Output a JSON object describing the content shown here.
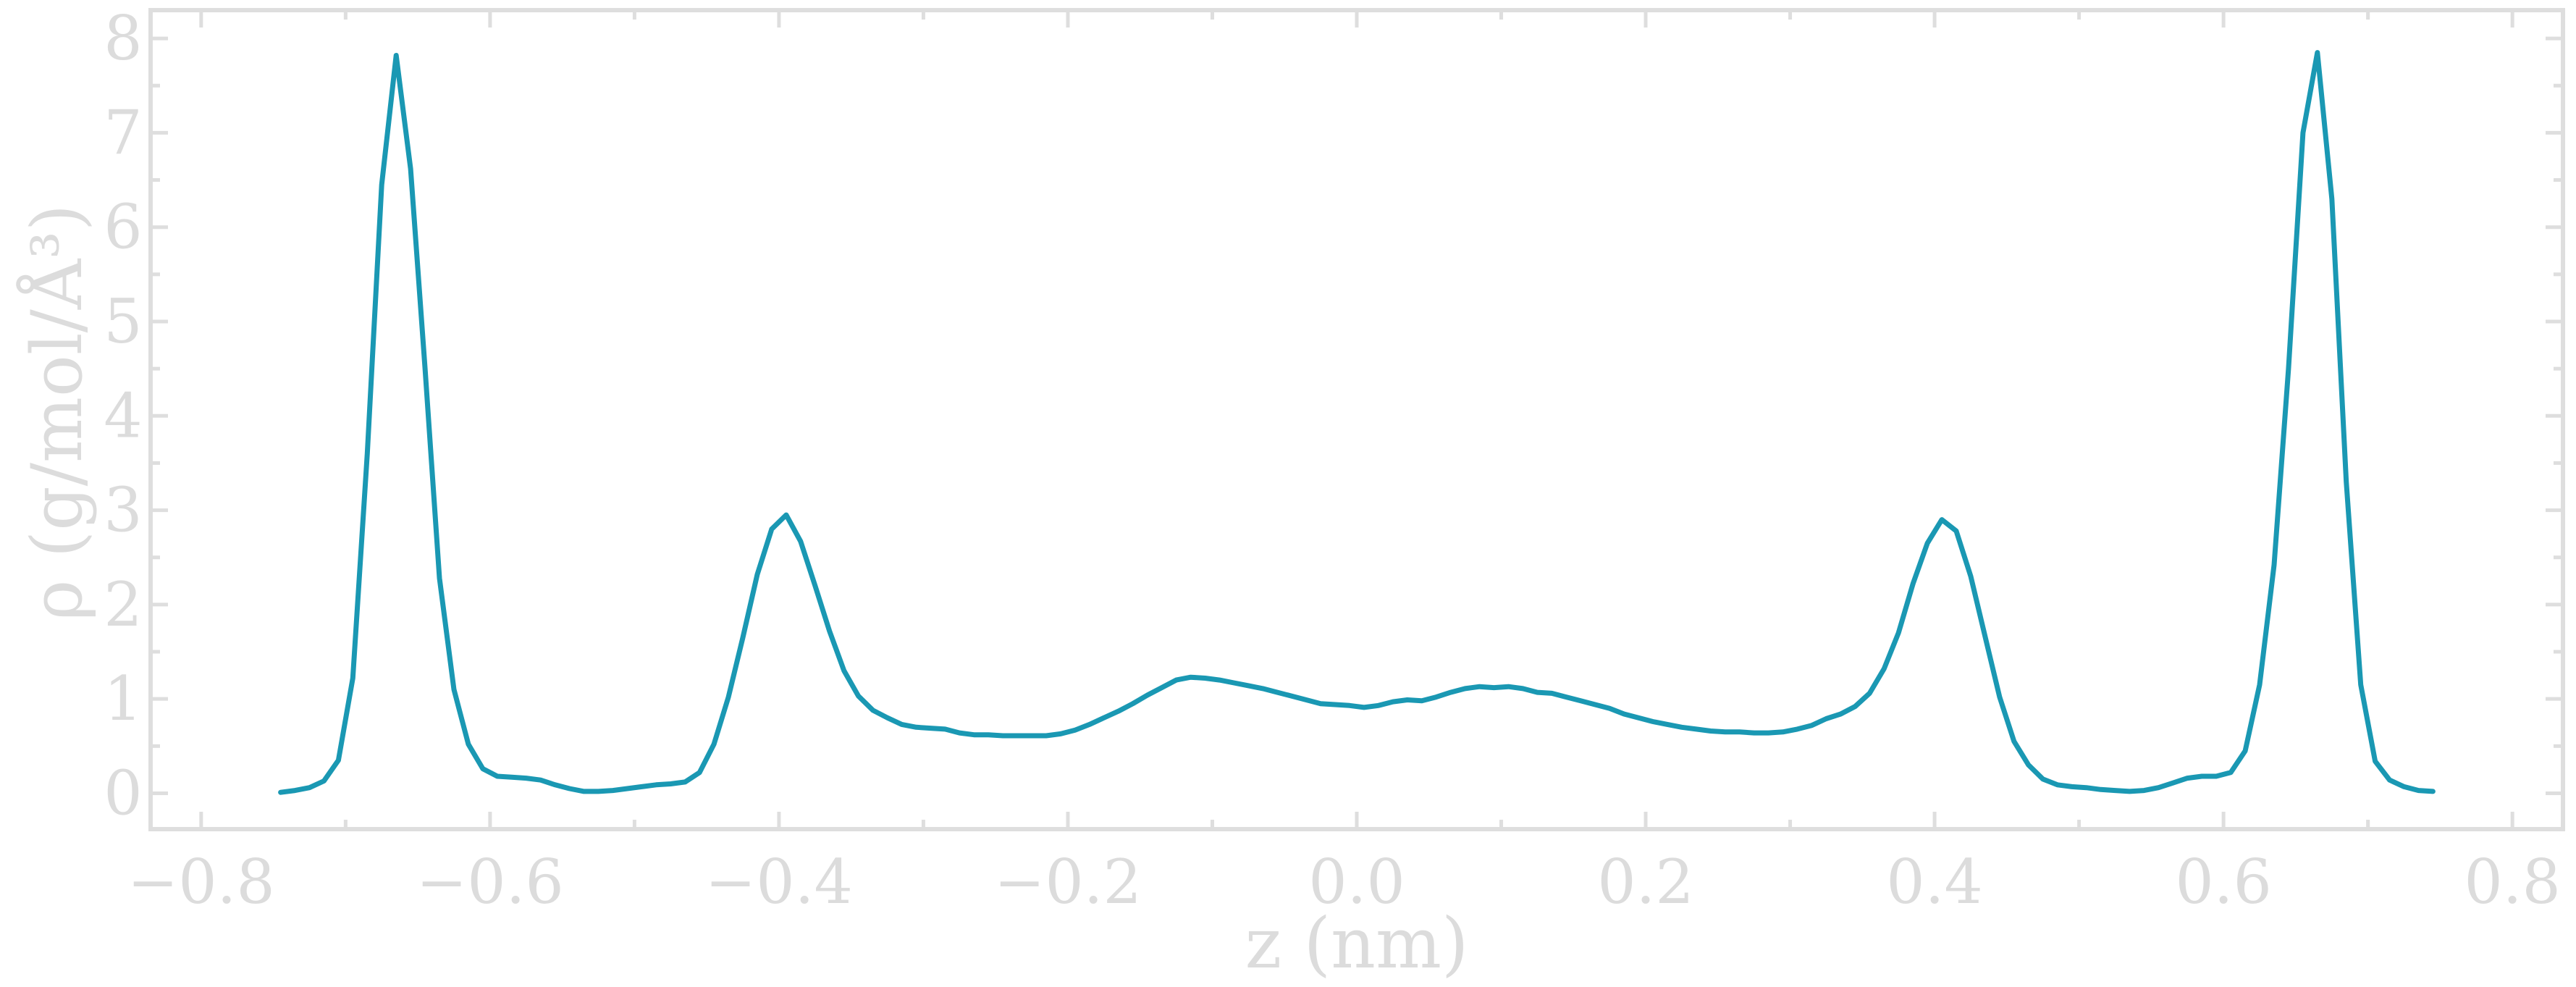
{
  "chart_data": {
    "type": "line",
    "title": "",
    "xlabel": "z (nm)",
    "ylabel": "ρ (g/mol/Å³)",
    "xlim": [
      -0.835,
      0.835
    ],
    "ylim": [
      -0.38,
      8.3
    ],
    "x_ticks": [
      -0.8,
      -0.6,
      -0.4,
      -0.2,
      0.0,
      0.2,
      0.4,
      0.6,
      0.8
    ],
    "x_tick_labels": [
      "−0.8",
      "−0.6",
      "−0.4",
      "−0.2",
      "0.0",
      "0.2",
      "0.4",
      "0.6",
      "0.8"
    ],
    "y_ticks": [
      0,
      1,
      2,
      3,
      4,
      5,
      6,
      7,
      8
    ],
    "y_tick_labels": [
      "0",
      "1",
      "2",
      "3",
      "4",
      "5",
      "6",
      "7",
      "8"
    ],
    "grid": false,
    "colors": {
      "series": "#1a98b3",
      "axes": "#dedede",
      "text": "#dcdcdc"
    },
    "series": [
      {
        "x": [
          -0.745,
          -0.735,
          -0.725,
          -0.715,
          -0.705,
          -0.695,
          -0.685,
          -0.675,
          -0.665,
          -0.655,
          -0.645,
          -0.635,
          -0.625,
          -0.615,
          -0.605,
          -0.595,
          -0.585,
          -0.575,
          -0.565,
          -0.555,
          -0.545,
          -0.535,
          -0.525,
          -0.515,
          -0.505,
          -0.495,
          -0.485,
          -0.475,
          -0.465,
          -0.455,
          -0.445,
          -0.435,
          -0.425,
          -0.415,
          -0.405,
          -0.395,
          -0.385,
          -0.375,
          -0.365,
          -0.355,
          -0.345,
          -0.335,
          -0.325,
          -0.315,
          -0.305,
          -0.295,
          -0.285,
          -0.275,
          -0.265,
          -0.255,
          -0.245,
          -0.235,
          -0.225,
          -0.215,
          -0.205,
          -0.195,
          -0.185,
          -0.175,
          -0.165,
          -0.155,
          -0.145,
          -0.135,
          -0.125,
          -0.115,
          -0.105,
          -0.095,
          -0.085,
          -0.075,
          -0.065,
          -0.055,
          -0.045,
          -0.035,
          -0.025,
          -0.015,
          -0.005,
          0.005,
          0.015,
          0.025,
          0.035,
          0.045,
          0.055,
          0.065,
          0.075,
          0.085,
          0.095,
          0.105,
          0.115,
          0.125,
          0.135,
          0.145,
          0.155,
          0.165,
          0.175,
          0.185,
          0.195,
          0.205,
          0.215,
          0.225,
          0.235,
          0.245,
          0.255,
          0.265,
          0.275,
          0.285,
          0.295,
          0.305,
          0.315,
          0.325,
          0.335,
          0.345,
          0.355,
          0.365,
          0.375,
          0.385,
          0.395,
          0.405,
          0.415,
          0.425,
          0.435,
          0.445,
          0.455,
          0.465,
          0.475,
          0.485,
          0.495,
          0.505,
          0.515,
          0.525,
          0.535,
          0.545,
          0.555,
          0.565,
          0.575,
          0.585,
          0.595,
          0.605,
          0.615,
          0.625,
          0.635,
          0.645,
          0.655,
          0.665,
          0.675,
          0.685,
          0.695,
          0.705,
          0.715,
          0.725,
          0.735,
          0.745
        ],
        "y": [
          0.01,
          0.03,
          0.06,
          0.13,
          0.35,
          1.22,
          3.6,
          6.45,
          7.82,
          6.62,
          4.5,
          2.28,
          1.1,
          0.52,
          0.26,
          0.18,
          0.17,
          0.16,
          0.14,
          0.09,
          0.05,
          0.02,
          0.02,
          0.03,
          0.05,
          0.07,
          0.09,
          0.1,
          0.12,
          0.22,
          0.52,
          1.02,
          1.65,
          2.32,
          2.8,
          2.95,
          2.67,
          2.2,
          1.72,
          1.3,
          1.03,
          0.88,
          0.8,
          0.73,
          0.7,
          0.69,
          0.68,
          0.64,
          0.62,
          0.62,
          0.61,
          0.61,
          0.61,
          0.61,
          0.63,
          0.67,
          0.73,
          0.8,
          0.87,
          0.95,
          1.04,
          1.12,
          1.2,
          1.23,
          1.22,
          1.2,
          1.17,
          1.14,
          1.11,
          1.07,
          1.03,
          0.99,
          0.95,
          0.94,
          0.93,
          0.91,
          0.93,
          0.97,
          0.99,
          0.98,
          1.02,
          1.07,
          1.11,
          1.13,
          1.12,
          1.13,
          1.11,
          1.07,
          1.06,
          1.02,
          0.98,
          0.94,
          0.9,
          0.84,
          0.8,
          0.76,
          0.73,
          0.7,
          0.68,
          0.66,
          0.65,
          0.65,
          0.64,
          0.64,
          0.65,
          0.68,
          0.72,
          0.79,
          0.84,
          0.92,
          1.06,
          1.32,
          1.7,
          2.22,
          2.65,
          2.9,
          2.78,
          2.3,
          1.66,
          1.02,
          0.55,
          0.3,
          0.15,
          0.09,
          0.07,
          0.06,
          0.04,
          0.03,
          0.02,
          0.03,
          0.06,
          0.11,
          0.16,
          0.18,
          0.18,
          0.22,
          0.45,
          1.15,
          2.42,
          4.5,
          7.0,
          7.85,
          6.3,
          3.3,
          1.15,
          0.34,
          0.14,
          0.07,
          0.03,
          0.02
        ]
      }
    ]
  }
}
